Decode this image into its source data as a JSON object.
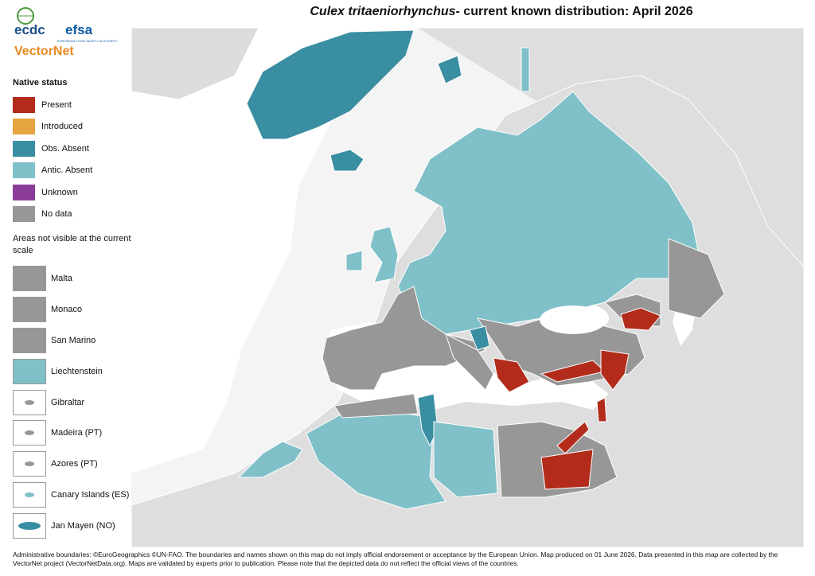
{
  "header": {
    "title_species": "Culex tritaeniorhynchus",
    "title_rest": "- current known distribution: April 2026"
  },
  "logos": {
    "ecdc": "ecdc",
    "efsa": "efsa",
    "efsa_sub": "EUROPEAN FOOD SAFETY AUTHORITY",
    "vectornet": "VectorNet"
  },
  "legend": {
    "title": "Native status",
    "items": [
      {
        "label": "Present",
        "color": "#b22b1b"
      },
      {
        "label": "Introduced",
        "color": "#e5a43f"
      },
      {
        "label": "Obs. Absent",
        "color": "#3a8ea2"
      },
      {
        "label": "Antic. Absent",
        "color": "#80c0c8"
      },
      {
        "label": "Unknown",
        "color": "#8a3c98"
      },
      {
        "label": "No data",
        "color": "#979797"
      }
    ]
  },
  "areas": {
    "title": "Areas not visible at the current scale",
    "items": [
      "Malta",
      "Monaco",
      "San Marino",
      "Liechtenstein",
      "Gibraltar",
      "Madeira (PT)",
      "Azores (PT)",
      "Canary Islands (ES)",
      "Jan Mayen (NO)"
    ]
  },
  "footer": "Administrative boundaries: ©EuroGeographics ©UN-FAO. The boundaries and names shown on this map do not imply official endorsement or acceptance by the European Union. Map produced on 01 June 2026. Data presented in this map are collected by the VectorNet project (VectorNetData.org). Maps are validated by experts prior to publication. Please note that the depicted data do not reflect the official views of the countries."
}
